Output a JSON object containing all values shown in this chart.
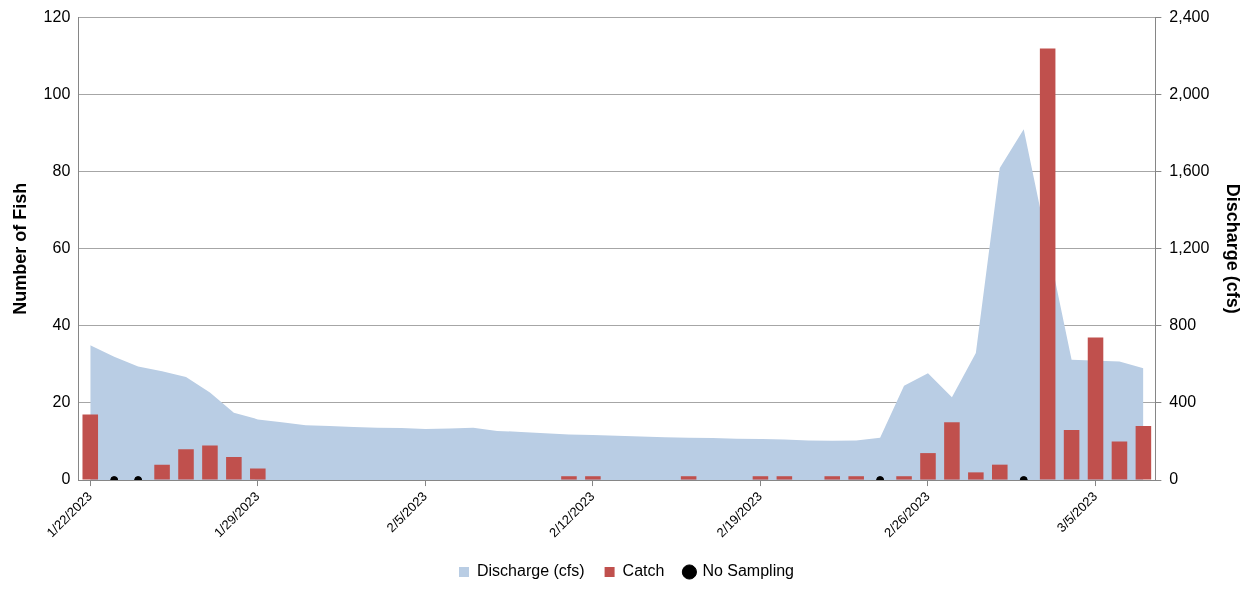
{
  "chart_data": {
    "type": "bar",
    "ylabel": "Number of Fish",
    "y2label": "Discharge (cfs)",
    "categories": [
      "1/22/2023",
      null,
      null,
      null,
      null,
      null,
      null,
      "1/29/2023",
      null,
      null,
      null,
      null,
      null,
      null,
      "2/5/2023",
      null,
      null,
      null,
      null,
      null,
      null,
      "2/12/2023",
      null,
      null,
      null,
      null,
      null,
      null,
      "2/19/2023",
      null,
      null,
      null,
      null,
      null,
      null,
      "2/26/2023",
      null,
      null,
      null,
      null,
      null,
      null,
      "3/5/2023",
      null,
      null
    ],
    "series": [
      {
        "name": "Discharge (cfs)",
        "type": "area",
        "axis": "y2",
        "color": "#b9cde4",
        "values": [
          700,
          640,
          590,
          565,
          535,
          455,
          350,
          315,
          300,
          285,
          280,
          275,
          272,
          270,
          265,
          268,
          272,
          255,
          250,
          243,
          236,
          234,
          230,
          226,
          222,
          220,
          218,
          215,
          213,
          210,
          206,
          204,
          205,
          220,
          490,
          555,
          430,
          660,
          1620,
          1820,
          null,
          625,
          null,
          615,
          580
        ]
      },
      {
        "name": "Catch",
        "color": "#c0504d",
        "values": [
          17,
          null,
          null,
          4,
          8,
          9,
          6,
          3,
          0,
          0,
          0,
          0,
          0,
          0,
          0,
          0,
          0,
          0,
          0,
          0,
          1,
          1,
          0,
          0,
          0,
          1,
          0,
          0,
          1,
          1,
          0,
          1,
          1,
          null,
          1,
          7,
          15,
          2,
          4,
          null,
          112,
          13,
          37,
          10,
          14
        ]
      },
      {
        "name": "No Sampling",
        "type": "scatter",
        "marker": "circle",
        "color": "#000000",
        "values": [
          null,
          0,
          0,
          null,
          null,
          null,
          null,
          null,
          null,
          null,
          null,
          null,
          null,
          null,
          null,
          null,
          null,
          null,
          null,
          null,
          null,
          null,
          null,
          null,
          null,
          null,
          null,
          null,
          null,
          null,
          null,
          null,
          null,
          0,
          null,
          null,
          null,
          null,
          null,
          0,
          null,
          null,
          null,
          null,
          null
        ]
      }
    ],
    "ylim": [
      0,
      120
    ],
    "yticks": [
      0,
      20,
      40,
      60,
      80,
      100,
      120
    ],
    "y2lim": [
      0,
      2400
    ],
    "y2ticks": [
      0,
      {
        "value": 400,
        "label": "400"
      },
      {
        "value": 800,
        "label": "800"
      },
      {
        "value": 1200,
        "label": "1,200"
      },
      {
        "value": 1600,
        "label": "1,600"
      },
      {
        "value": 2000,
        "label": "2,000"
      },
      {
        "value": 2400,
        "label": "2,400"
      }
    ],
    "grid": "y",
    "legend": "bottom"
  }
}
